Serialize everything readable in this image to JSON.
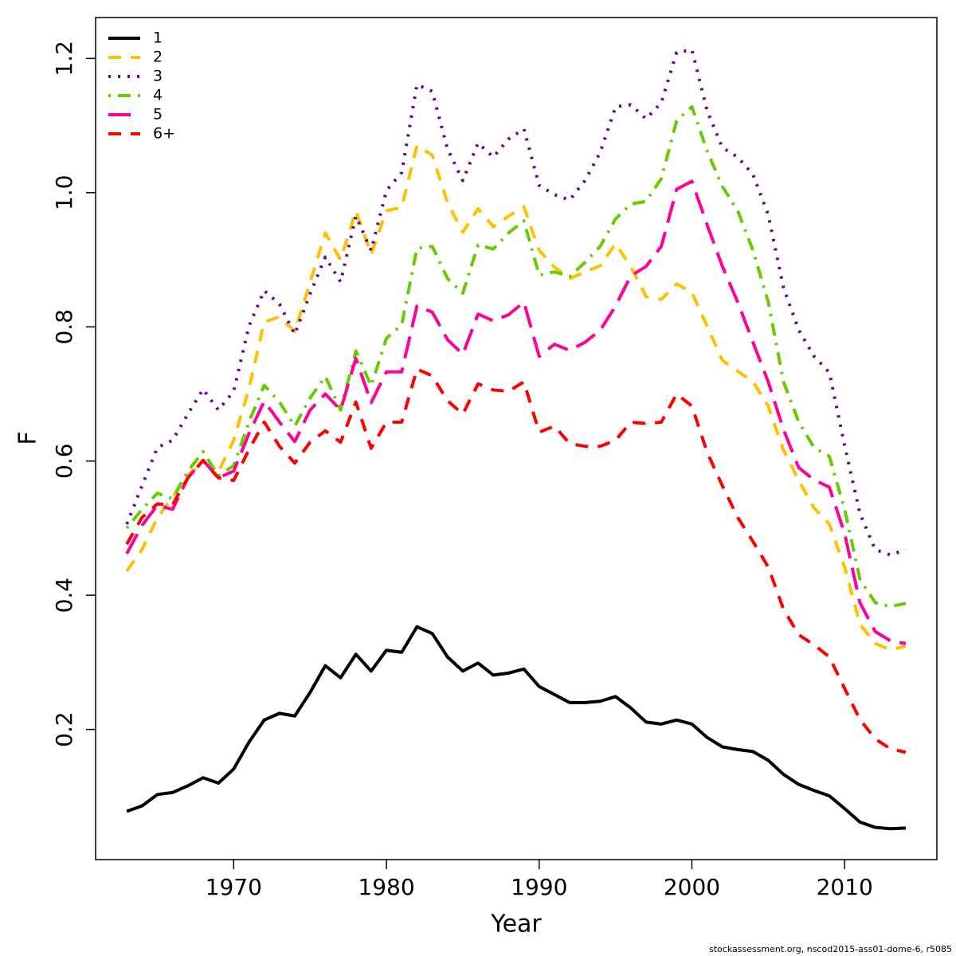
{
  "chart_data": {
    "type": "line",
    "x_label": "Year",
    "y_label": "F",
    "footnote": "stockassessment.org, nscod2015-ass01-dome-6, r5085",
    "x": [
      1963,
      1964,
      1965,
      1966,
      1967,
      1968,
      1969,
      1970,
      1971,
      1972,
      1973,
      1974,
      1975,
      1976,
      1977,
      1978,
      1979,
      1980,
      1981,
      1982,
      1983,
      1984,
      1985,
      1986,
      1987,
      1988,
      1989,
      1990,
      1991,
      1992,
      1993,
      1994,
      1995,
      1996,
      1997,
      1998,
      1999,
      2000,
      2001,
      2002,
      2003,
      2004,
      2005,
      2006,
      2007,
      2008,
      2009,
      2010,
      2011,
      2012,
      2013,
      2014
    ],
    "xlim": [
      1960.96,
      2016.04
    ],
    "xticks": [
      1970,
      1980,
      1990,
      2000,
      2010
    ],
    "ylim": [
      0.006,
      1.261
    ],
    "yticks": [
      0.2,
      0.4,
      0.6,
      0.8,
      {
        "value": 1,
        "label": "1.0"
      },
      1.2
    ],
    "legend_position": "top-left",
    "series": [
      {
        "name": "1",
        "color": "#000000",
        "linestyle": "solid",
        "values": [
          0.078,
          0.086,
          0.103,
          0.106,
          0.116,
          0.128,
          0.12,
          0.141,
          0.181,
          0.214,
          0.224,
          0.22,
          0.255,
          0.295,
          0.277,
          0.312,
          0.287,
          0.318,
          0.315,
          0.353,
          0.343,
          0.308,
          0.287,
          0.299,
          0.281,
          0.284,
          0.29,
          0.264,
          0.252,
          0.24,
          0.24,
          0.242,
          0.249,
          0.232,
          0.211,
          0.208,
          0.214,
          0.208,
          0.188,
          0.174,
          0.17,
          0.167,
          0.154,
          0.133,
          0.118,
          0.109,
          0.101,
          0.082,
          0.062,
          0.054,
          0.052,
          0.053
        ]
      },
      {
        "name": "2",
        "color": "#ffc000",
        "linestyle": "dashed",
        "values": [
          0.436,
          0.468,
          0.515,
          0.546,
          0.579,
          0.599,
          0.584,
          0.631,
          0.708,
          0.807,
          0.815,
          0.793,
          0.866,
          0.94,
          0.9,
          0.973,
          0.908,
          0.973,
          0.978,
          1.07,
          1.056,
          0.985,
          0.941,
          0.976,
          0.949,
          0.965,
          0.979,
          0.914,
          0.889,
          0.872,
          0.882,
          0.891,
          0.924,
          0.89,
          0.845,
          0.841,
          0.864,
          0.851,
          0.801,
          0.75,
          0.734,
          0.718,
          0.682,
          0.616,
          0.571,
          0.53,
          0.506,
          0.442,
          0.357,
          0.328,
          0.319,
          0.324
        ]
      },
      {
        "name": "3",
        "color": "#660099",
        "linestyle": "dotted",
        "values": [
          0.506,
          0.563,
          0.62,
          0.631,
          0.67,
          0.707,
          0.676,
          0.704,
          0.801,
          0.854,
          0.834,
          0.789,
          0.849,
          0.904,
          0.867,
          0.965,
          0.914,
          1.003,
          1.03,
          1.161,
          1.151,
          1.065,
          1.018,
          1.074,
          1.053,
          1.08,
          1.095,
          1.011,
          0.997,
          0.989,
          1.018,
          1.06,
          1.128,
          1.131,
          1.11,
          1.134,
          1.209,
          1.213,
          1.122,
          1.067,
          1.053,
          1.027,
          0.967,
          0.858,
          0.795,
          0.756,
          0.732,
          0.623,
          0.522,
          0.468,
          0.46,
          0.468
        ]
      },
      {
        "name": "4",
        "color": "#66cc00",
        "linestyle": "dotdash",
        "values": [
          0.5,
          0.528,
          0.552,
          0.544,
          0.585,
          0.614,
          0.578,
          0.593,
          0.658,
          0.713,
          0.688,
          0.652,
          0.694,
          0.726,
          0.676,
          0.764,
          0.712,
          0.783,
          0.803,
          0.917,
          0.92,
          0.872,
          0.85,
          0.922,
          0.916,
          0.94,
          0.958,
          0.877,
          0.882,
          0.875,
          0.896,
          0.92,
          0.961,
          0.983,
          0.987,
          1.021,
          1.107,
          1.128,
          1.062,
          1.009,
          0.973,
          0.914,
          0.837,
          0.718,
          0.658,
          0.62,
          0.607,
          0.528,
          0.424,
          0.389,
          0.383,
          0.388
        ]
      },
      {
        "name": "5",
        "color": "#ff0099",
        "linestyle": "longdash",
        "values": [
          0.462,
          0.504,
          0.534,
          0.528,
          0.575,
          0.601,
          0.575,
          0.585,
          0.641,
          0.689,
          0.658,
          0.629,
          0.676,
          0.7,
          0.676,
          0.753,
          0.687,
          0.733,
          0.733,
          0.831,
          0.822,
          0.781,
          0.759,
          0.819,
          0.809,
          0.818,
          0.837,
          0.756,
          0.774,
          0.765,
          0.777,
          0.795,
          0.831,
          0.876,
          0.89,
          0.92,
          1.005,
          1.017,
          0.952,
          0.89,
          0.837,
          0.777,
          0.718,
          0.647,
          0.59,
          0.572,
          0.561,
          0.492,
          0.389,
          0.346,
          0.332,
          0.328
        ]
      },
      {
        "name": "6+",
        "color": "#ff0000",
        "linestyle": "dashed",
        "values": [
          0.476,
          0.516,
          0.536,
          0.535,
          0.575,
          0.601,
          0.575,
          0.571,
          0.617,
          0.658,
          0.622,
          0.597,
          0.628,
          0.645,
          0.628,
          0.688,
          0.619,
          0.658,
          0.658,
          0.737,
          0.727,
          0.69,
          0.67,
          0.715,
          0.706,
          0.704,
          0.718,
          0.643,
          0.652,
          0.626,
          0.622,
          0.622,
          0.631,
          0.658,
          0.656,
          0.658,
          0.7,
          0.682,
          0.613,
          0.563,
          0.516,
          0.48,
          0.442,
          0.379,
          0.341,
          0.326,
          0.308,
          0.261,
          0.215,
          0.186,
          0.171,
          0.166
        ]
      }
    ]
  }
}
